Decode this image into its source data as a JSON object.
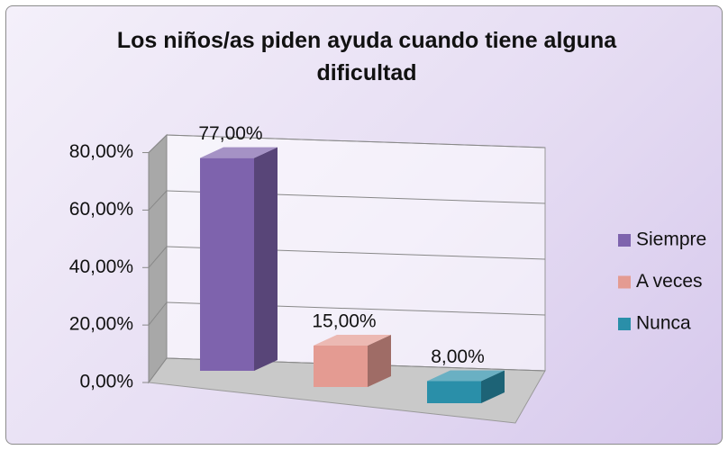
{
  "chart_data": {
    "type": "bar3d",
    "title": "Los niños/as piden  ayuda cuando tiene alguna dificultad",
    "categories": [
      "Siempre",
      "A veces",
      "Nunca"
    ],
    "values": [
      77,
      15,
      8
    ],
    "value_labels": [
      "77,00%",
      "15,00%",
      "8,00%"
    ],
    "colors": [
      "#7e63ad",
      "#e49b92",
      "#2a8fa9"
    ],
    "ylim": [
      0,
      80
    ],
    "yticks": [
      {
        "value": 0,
        "label": "0,00%"
      },
      {
        "value": 20,
        "label": "20,00%"
      },
      {
        "value": 40,
        "label": "40,00%"
      },
      {
        "value": 60,
        "label": "60,00%"
      },
      {
        "value": 80,
        "label": "80,00%"
      }
    ],
    "grid": true,
    "legend": "right"
  }
}
